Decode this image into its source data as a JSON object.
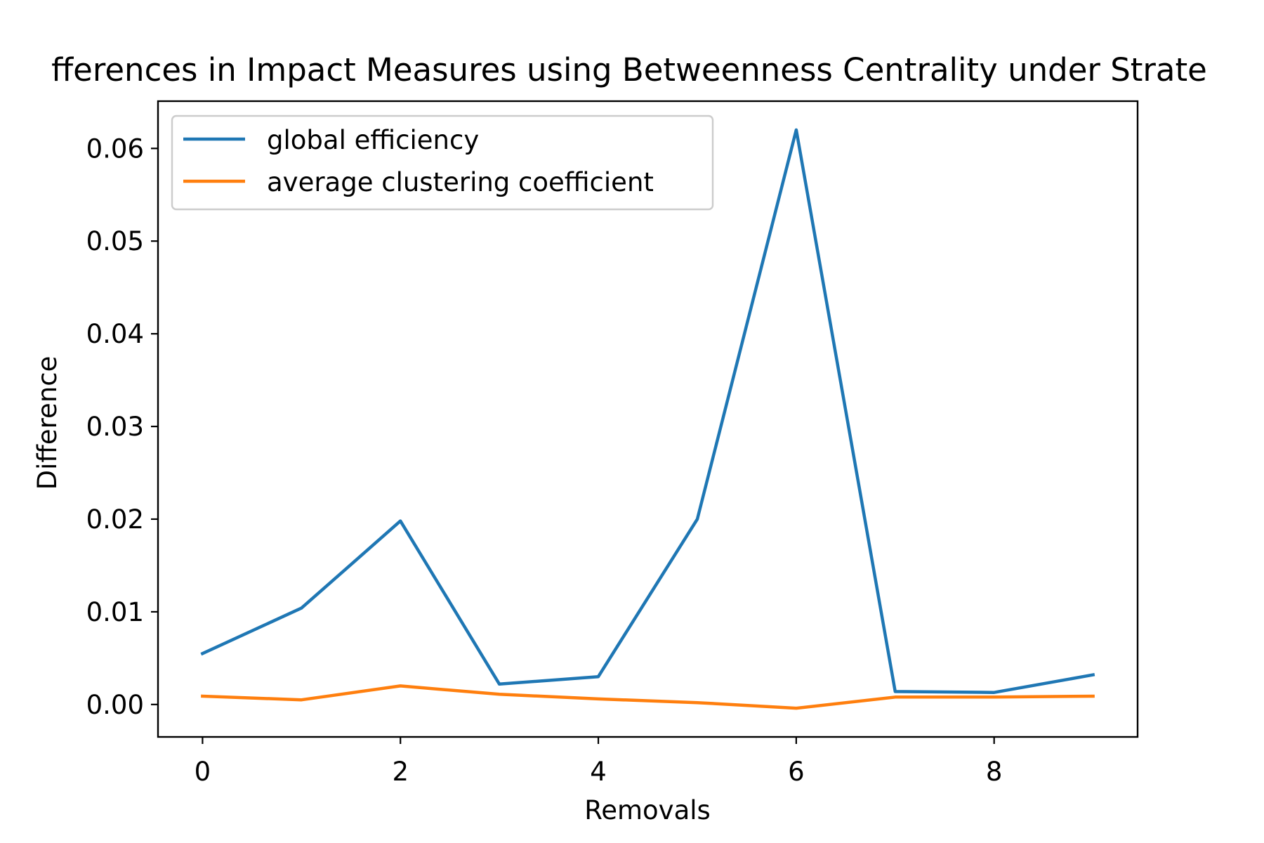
{
  "chart_data": {
    "type": "line",
    "title": "Differences in Impact Measures using Betweenness Centrality under Strategy",
    "title_visible_text": "fferences in Impact Measures using Betweenness Centrality under Strate",
    "xlabel": "Removals",
    "ylabel": "Difference",
    "x": [
      0,
      1,
      2,
      3,
      4,
      5,
      6,
      7,
      8,
      9
    ],
    "xlim": [
      -0.45,
      9.45
    ],
    "ylim": [
      -0.0035,
      0.0651
    ],
    "xticks": [
      0,
      2,
      4,
      6,
      8
    ],
    "xtick_labels": [
      "0",
      "2",
      "4",
      "6",
      "8"
    ],
    "yticks": [
      0.0,
      0.01,
      0.02,
      0.03,
      0.04,
      0.05,
      0.06
    ],
    "ytick_labels": [
      "0.00",
      "0.01",
      "0.02",
      "0.03",
      "0.04",
      "0.05",
      "0.06"
    ],
    "grid": false,
    "legend_position": "upper-left",
    "series": [
      {
        "name": "global efficiency",
        "color": "#1f77b4",
        "values": [
          0.0055,
          0.0104,
          0.0198,
          0.0022,
          0.003,
          0.02,
          0.062,
          0.0014,
          0.0013,
          0.0032
        ]
      },
      {
        "name": "average clustering coefficient",
        "color": "#ff7f0e",
        "values": [
          0.0009,
          0.0005,
          0.002,
          0.0011,
          0.0006,
          0.0002,
          -0.0004,
          0.0008,
          0.0008,
          0.0009
        ]
      }
    ]
  }
}
